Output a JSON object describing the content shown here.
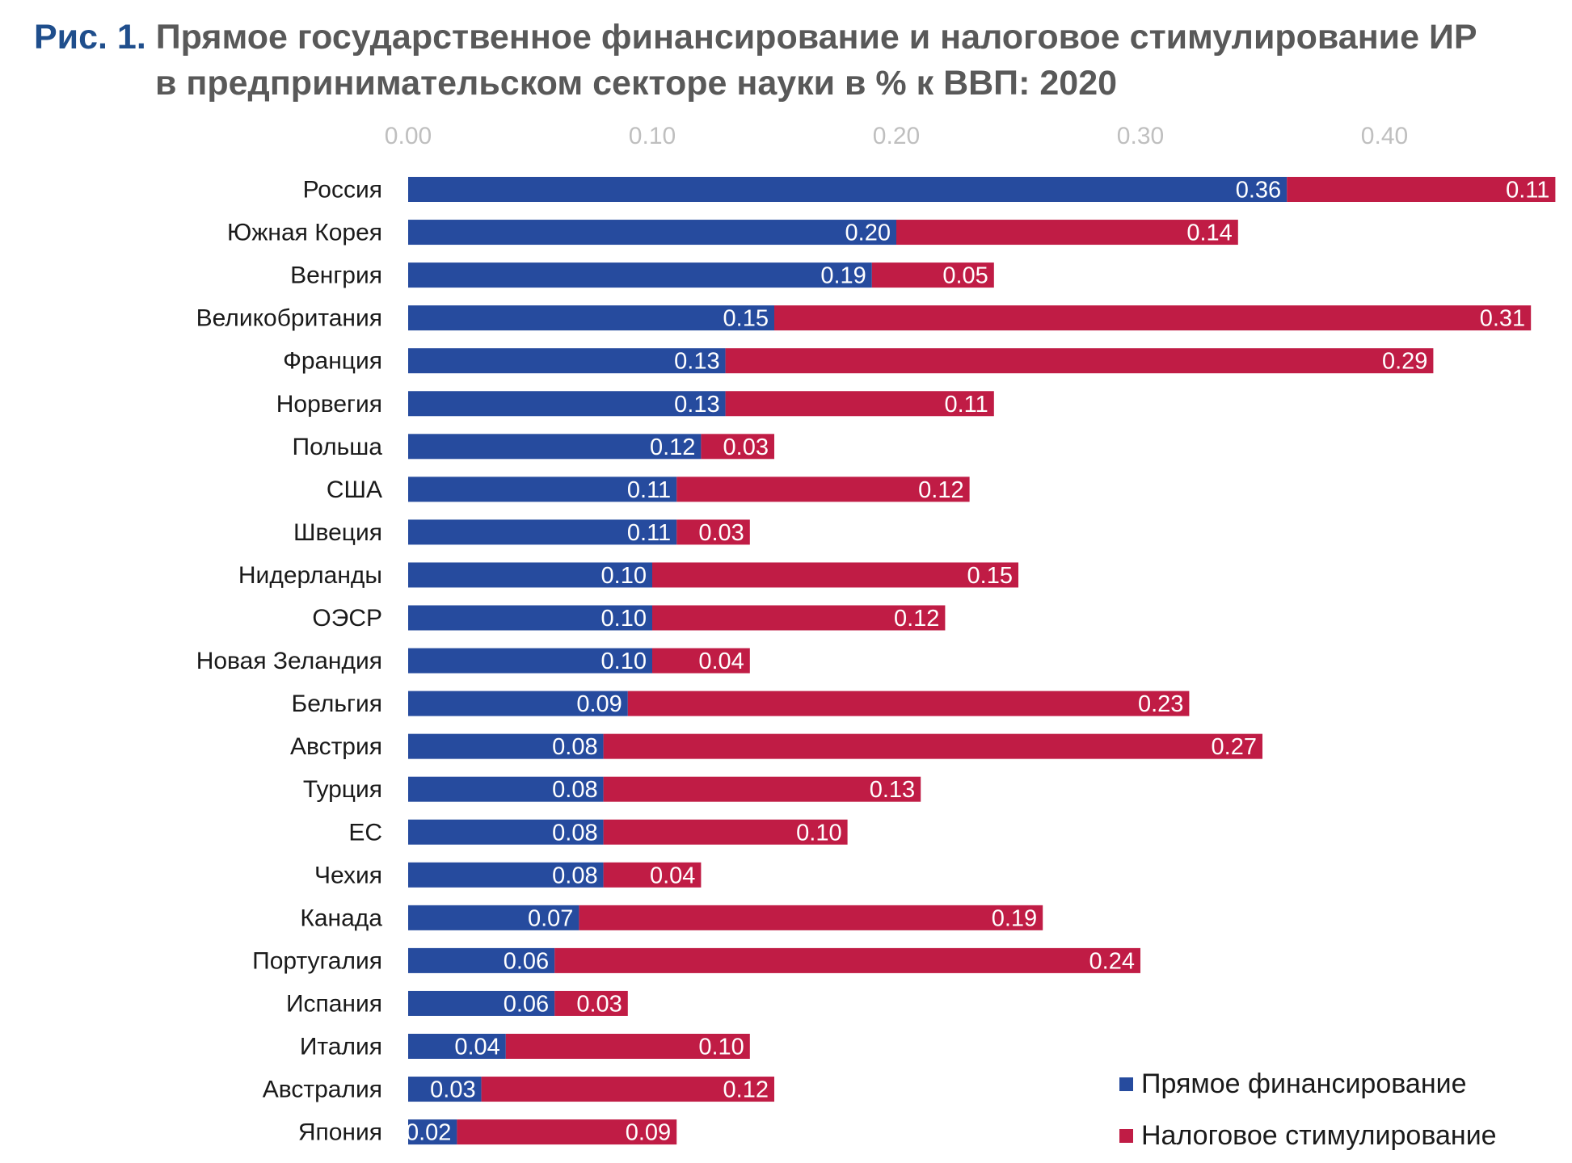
{
  "figure": {
    "prefix": "Рис. 1.",
    "title_line1": "Прямое государственное финансирование и налоговое стимулирование ИР",
    "title_line2": "в предпринимательском секторе науки в % к ВВП: 2020"
  },
  "chart_data": {
    "type": "bar",
    "orientation": "horizontal",
    "stacked": true,
    "title": "Прямое государственное финансирование и налоговое стимулирование ИР в предпринимательском секторе науки в % к ВВП: 2020",
    "xlabel": "",
    "ylabel": "",
    "xlim": [
      0,
      0.47
    ],
    "x_ticks": [
      "0.00",
      "0.10",
      "0.20",
      "0.30",
      "0.40"
    ],
    "x_axis_position": "top",
    "grid": false,
    "legend_position": "bottom-right",
    "categories": [
      "Россия",
      "Южная Корея",
      "Венгрия",
      "Великобритания",
      "Франция",
      "Норвегия",
      "Польша",
      "США",
      "Швеция",
      "Нидерланды",
      "ОЭСР",
      "Новая Зеландия",
      "Бельгия",
      "Австрия",
      "Турция",
      "ЕС",
      "Чехия",
      "Канада",
      "Португалия",
      "Испания",
      "Италия",
      "Австралия",
      "Япония"
    ],
    "series": [
      {
        "name": "Прямое финансирование",
        "color": "#264b9e",
        "values": [
          0.36,
          0.2,
          0.19,
          0.15,
          0.13,
          0.13,
          0.12,
          0.11,
          0.11,
          0.1,
          0.1,
          0.1,
          0.09,
          0.08,
          0.08,
          0.08,
          0.08,
          0.07,
          0.06,
          0.06,
          0.04,
          0.03,
          0.02
        ]
      },
      {
        "name": "Налоговое стимулирование",
        "color": "#c01c45",
        "values": [
          0.11,
          0.14,
          0.05,
          0.31,
          0.29,
          0.11,
          0.03,
          0.12,
          0.03,
          0.15,
          0.12,
          0.04,
          0.23,
          0.27,
          0.13,
          0.1,
          0.04,
          0.19,
          0.24,
          0.03,
          0.1,
          0.12,
          0.09
        ]
      }
    ]
  }
}
